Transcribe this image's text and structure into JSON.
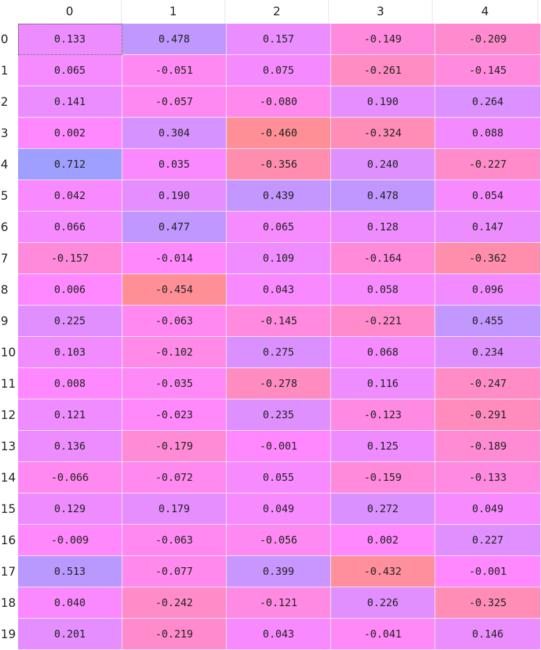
{
  "columns": [
    "0",
    "1",
    "2",
    "3",
    "4"
  ],
  "row_labels": [
    "0",
    "1",
    "2",
    "3",
    "4",
    "5",
    "6",
    "7",
    "8",
    "9",
    "10",
    "11",
    "12",
    "13",
    "14",
    "15",
    "16",
    "17",
    "18",
    "19"
  ],
  "values": [
    [
      "0.133",
      "0.478",
      "0.157",
      "-0.149",
      "-0.209"
    ],
    [
      "0.065",
      "-0.051",
      "0.075",
      "-0.261",
      "-0.145"
    ],
    [
      "0.141",
      "-0.057",
      "-0.080",
      "0.190",
      "0.264"
    ],
    [
      "0.002",
      "0.304",
      "-0.460",
      "-0.324",
      "0.088"
    ],
    [
      "0.712",
      "0.035",
      "-0.356",
      "0.240",
      "-0.227"
    ],
    [
      "0.042",
      "0.190",
      "0.439",
      "0.478",
      "0.054"
    ],
    [
      "0.066",
      "0.477",
      "0.065",
      "0.128",
      "0.147"
    ],
    [
      "-0.157",
      "-0.014",
      "0.109",
      "-0.164",
      "-0.362"
    ],
    [
      "0.006",
      "-0.454",
      "0.043",
      "0.058",
      "0.096"
    ],
    [
      "0.225",
      "-0.063",
      "-0.145",
      "-0.221",
      "0.455"
    ],
    [
      "0.103",
      "-0.102",
      "0.275",
      "0.068",
      "0.234"
    ],
    [
      "0.008",
      "-0.035",
      "-0.278",
      "0.116",
      "-0.247"
    ],
    [
      "0.121",
      "-0.023",
      "0.235",
      "-0.123",
      "-0.291"
    ],
    [
      "0.136",
      "-0.179",
      "-0.001",
      "0.125",
      "-0.189"
    ],
    [
      "-0.066",
      "-0.072",
      "0.055",
      "-0.159",
      "-0.133"
    ],
    [
      "0.129",
      "0.179",
      "0.049",
      "0.272",
      "0.049"
    ],
    [
      "-0.009",
      "-0.063",
      "-0.056",
      "0.002",
      "0.227"
    ],
    [
      "0.513",
      "-0.077",
      "0.399",
      "-0.432",
      "-0.001"
    ],
    [
      "0.040",
      "-0.242",
      "-0.121",
      "0.226",
      "-0.325"
    ],
    [
      "0.201",
      "-0.219",
      "0.043",
      "-0.041",
      "0.146"
    ]
  ],
  "colors": {
    "low": "#ff8f96",
    "mid": "#ff88ff",
    "high": "#9f9fff",
    "text": "#222222"
  },
  "selected_cell": {
    "row": 0,
    "col": 0
  }
}
